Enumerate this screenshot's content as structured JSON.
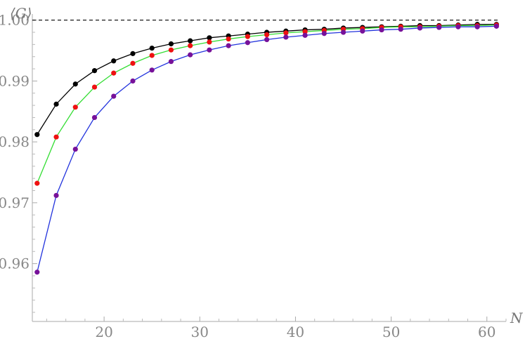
{
  "chart_data": {
    "type": "line",
    "title": "",
    "xlabel": "N",
    "ylabel": "⟨G⟩",
    "xlim": [
      12.5,
      62
    ],
    "ylim": [
      0.9505,
      1.001
    ],
    "x_ticks": [
      20,
      30,
      40,
      50,
      60
    ],
    "x_tick_labels": [
      "20",
      "30",
      "40",
      "50",
      "60"
    ],
    "y_ticks": [
      0.96,
      0.97,
      0.98,
      0.99,
      1.0
    ],
    "y_tick_labels": [
      "0.96",
      "0.97",
      "0.98",
      "0.99",
      "1.00"
    ],
    "grid": false,
    "reference_line": {
      "y": 1.0,
      "style": "dashed",
      "color": "#000000"
    },
    "x": [
      13,
      15,
      17,
      19,
      21,
      23,
      25,
      27,
      29,
      31,
      33,
      35,
      37,
      39,
      41,
      43,
      45,
      47,
      49,
      51,
      53,
      55,
      57,
      59,
      61
    ],
    "series": [
      {
        "line_color": "#000000",
        "marker_color": "#000000",
        "values": [
          0.9812,
          0.9862,
          0.9895,
          0.9917,
          0.9933,
          0.9945,
          0.9954,
          0.9961,
          0.9966,
          0.9971,
          0.9974,
          0.9977,
          0.998,
          0.9982,
          0.9984,
          0.9985,
          0.9987,
          0.9988,
          0.9989,
          0.999,
          0.9991,
          0.9991,
          0.9992,
          0.9993,
          0.9993
        ]
      },
      {
        "line_color": "#33dd33",
        "marker_color": "#ee1111",
        "values": [
          0.9732,
          0.9808,
          0.9857,
          0.989,
          0.9913,
          0.9929,
          0.9942,
          0.9951,
          0.9958,
          0.9964,
          0.9969,
          0.9973,
          0.9976,
          0.9979,
          0.9981,
          0.9983,
          0.9985,
          0.9986,
          0.9988,
          0.9989,
          0.9989,
          0.999,
          0.9991,
          0.9991,
          0.9992
        ]
      },
      {
        "line_color": "#2233dd",
        "marker_color": "#771199",
        "values": [
          0.9586,
          0.9712,
          0.9788,
          0.984,
          0.9875,
          0.99,
          0.9918,
          0.9932,
          0.9943,
          0.9951,
          0.9958,
          0.9963,
          0.9968,
          0.9972,
          0.9975,
          0.9978,
          0.998,
          0.9982,
          0.9984,
          0.9985,
          0.9987,
          0.9988,
          0.9989,
          0.9989,
          0.999
        ]
      }
    ]
  }
}
